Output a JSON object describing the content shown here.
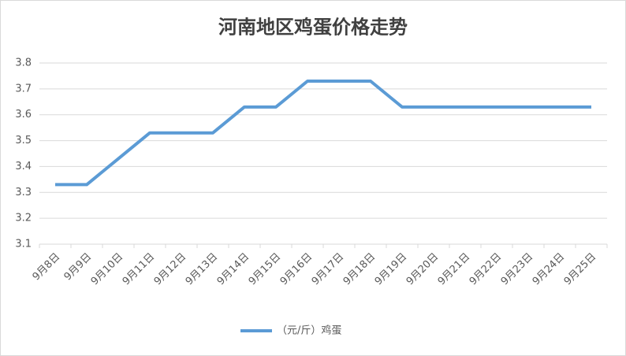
{
  "chart_data": {
    "type": "line",
    "title": "河南地区鸡蛋价格走势",
    "categories": [
      "9月8日",
      "9月9日",
      "9月10日",
      "9月11日",
      "9月12日",
      "9月13日",
      "9月14日",
      "9月15日",
      "9月16日",
      "9月17日",
      "9月18日",
      "9月19日",
      "9月20日",
      "9月21日",
      "9月22日",
      "9月23日",
      "9月24日",
      "9月25日"
    ],
    "series": [
      {
        "name": "（元/斤）鸡蛋",
        "color": "#5b9bd5",
        "values": [
          3.33,
          3.33,
          3.43,
          3.53,
          3.53,
          3.53,
          3.63,
          3.63,
          3.73,
          3.73,
          3.73,
          3.63,
          3.63,
          3.63,
          3.63,
          3.63,
          3.63,
          3.63
        ]
      }
    ],
    "ylim": [
      3.1,
      3.8
    ],
    "yticks": [
      3.1,
      3.2,
      3.3,
      3.4,
      3.5,
      3.6,
      3.7,
      3.8
    ],
    "grid": true,
    "legend": "bottom"
  }
}
